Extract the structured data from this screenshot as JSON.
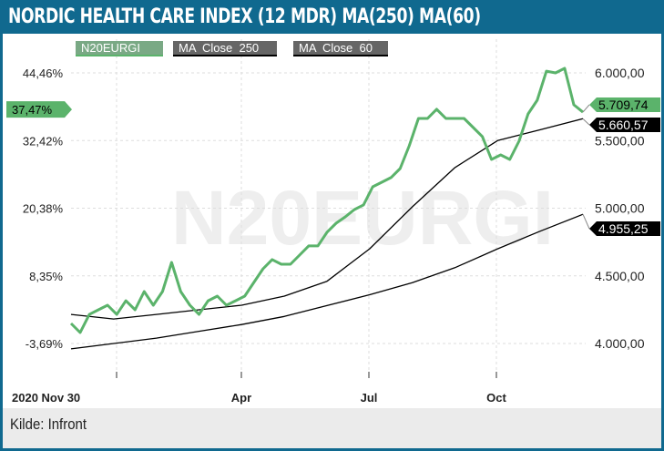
{
  "title": "NORDIC HEALTH CARE INDEX (12 MDR) MA(250) MA(60)",
  "source": "Kilde: Infront",
  "colors": {
    "frame": "#10698f",
    "green": "#5bb36b",
    "ma": "#000000"
  },
  "chart_data": {
    "type": "line",
    "watermark": "N20EURGI",
    "x_ticks": [
      "2020 Nov 30",
      "Apr",
      "Jul",
      "Oct"
    ],
    "left_axis": {
      "ticks": [
        "44,46%",
        "32,42%",
        "20,38%",
        "8,35%",
        "-3,69%"
      ]
    },
    "right_axis": {
      "range": [
        4000,
        6000
      ],
      "ticks": [
        {
          "v": 6000,
          "label": "6.000,00"
        },
        {
          "v": 5500,
          "label": "5.500,00"
        },
        {
          "v": 5000,
          "label": "5.000,00"
        },
        {
          "v": 4500,
          "label": "4.500,00"
        },
        {
          "v": 4000,
          "label": "4.000,00"
        }
      ]
    },
    "pct_label": "37,47%",
    "series": [
      {
        "name": "N20EURGI",
        "last_label": "5.709,74",
        "values": [
          4148,
          4081,
          4215,
          4249,
          4283,
          4215,
          4316,
          4249,
          4384,
          4283,
          4384,
          4599,
          4384,
          4283,
          4215,
          4316,
          4350,
          4283,
          4316,
          4350,
          4451,
          4552,
          4620,
          4586,
          4586,
          4653,
          4721,
          4721,
          4822,
          4889,
          4936,
          4990,
          5024,
          5158,
          5192,
          5226,
          5293,
          5461,
          5663,
          5663,
          5731,
          5663,
          5663,
          5663,
          5596,
          5529,
          5360,
          5394,
          5360,
          5495,
          5697,
          5798,
          6013,
          6000,
          6034,
          5764,
          5710
        ]
      },
      {
        "name": "MA  Close  250",
        "last_label": "4.955,25",
        "values": [
          3960,
          4000,
          4040,
          4090,
          4140,
          4200,
          4280,
          4360,
          4450,
          4560,
          4700,
          4830,
          4955
        ]
      },
      {
        "name": "MA  Close  60",
        "last_label": "5.660,57",
        "values": [
          4215,
          4181,
          4215,
          4249,
          4283,
          4350,
          4460,
          4700,
          5010,
          5300,
          5500,
          5580,
          5661
        ]
      }
    ]
  }
}
